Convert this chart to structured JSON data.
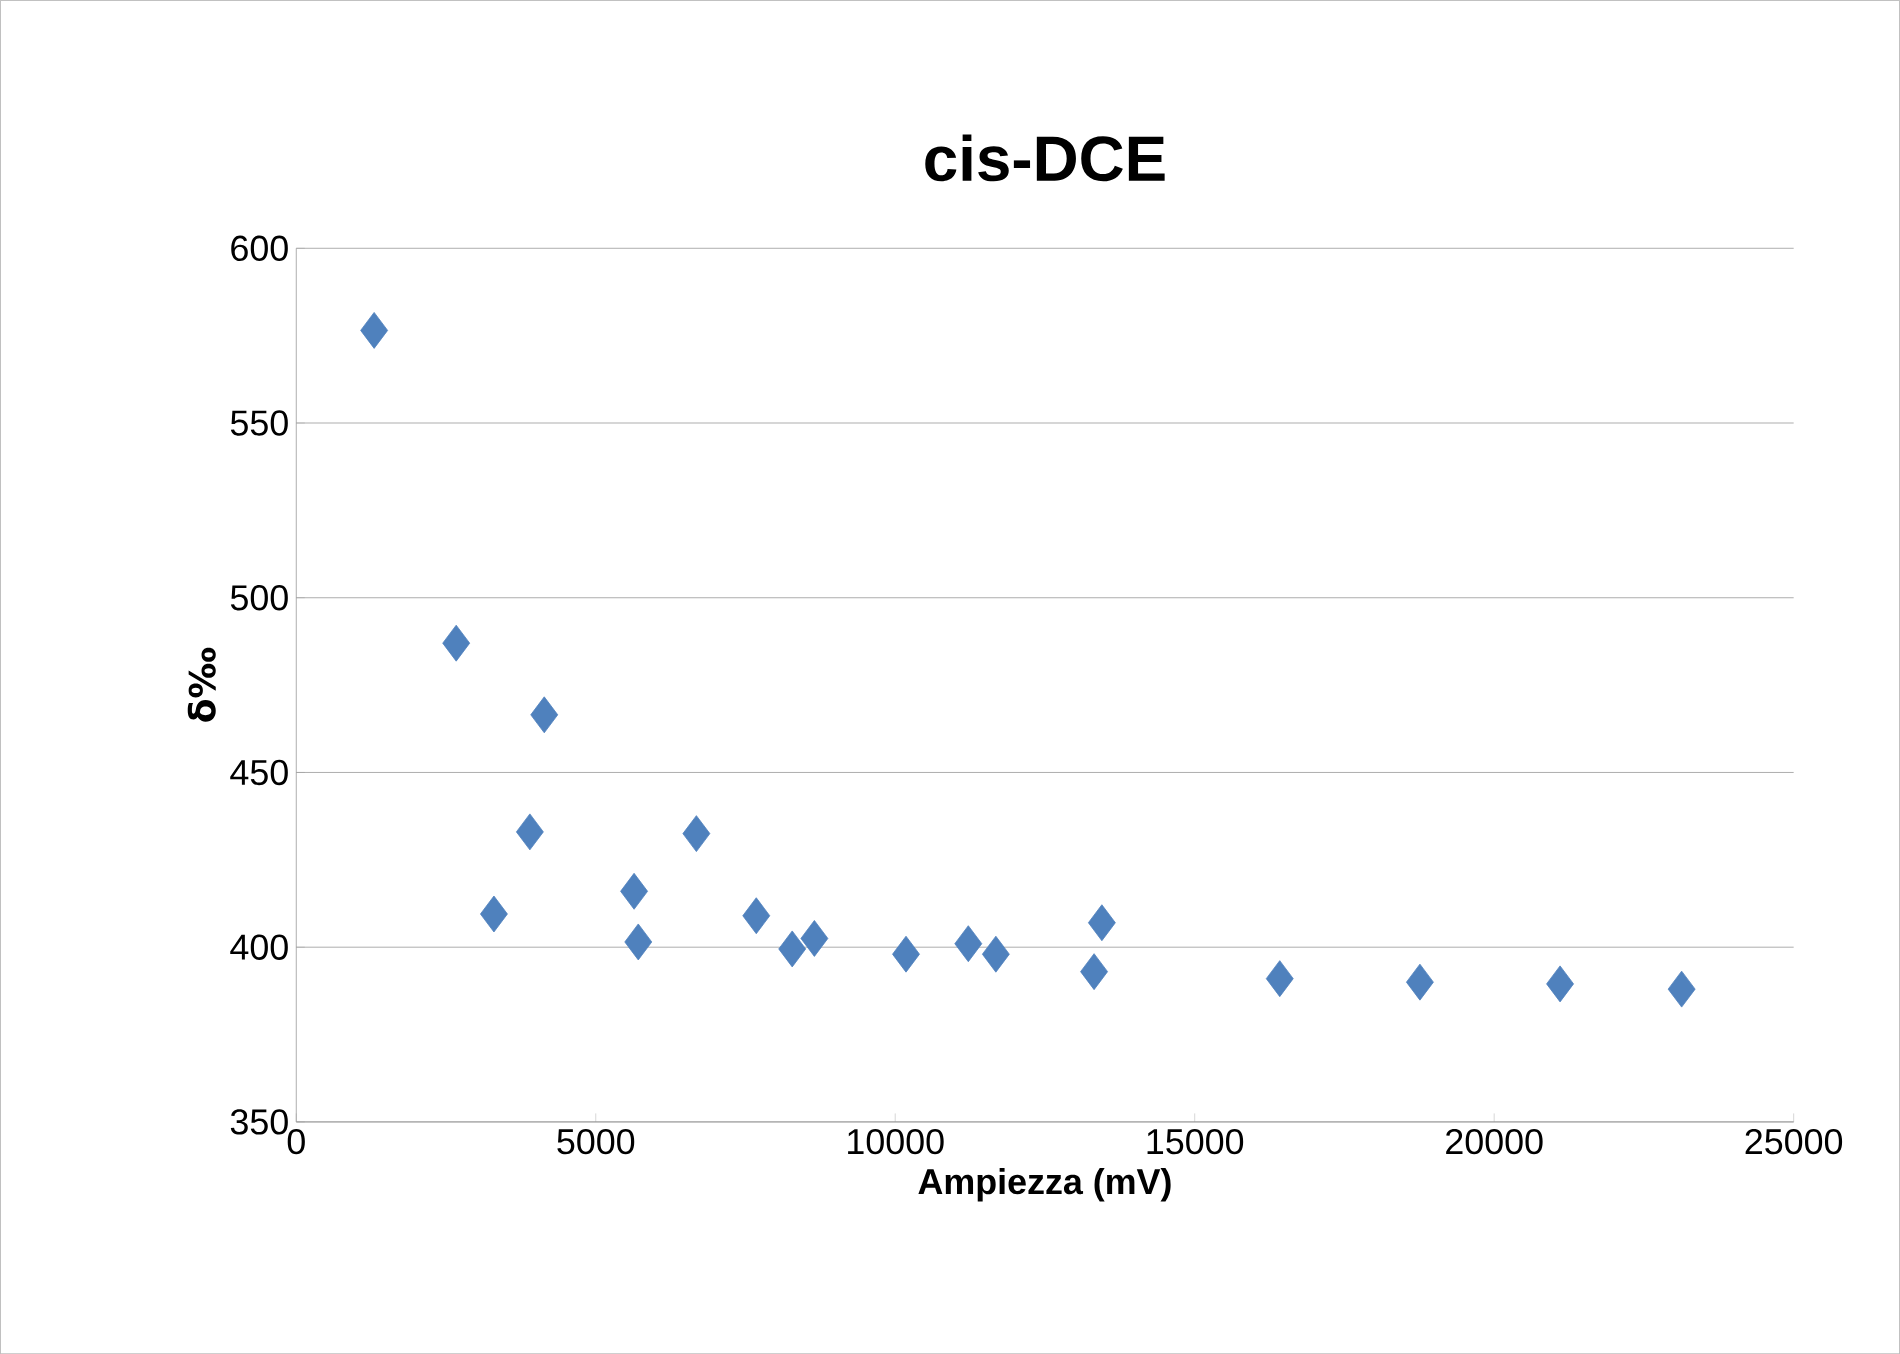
{
  "chart_data": {
    "type": "scatter",
    "title": "cis-DCE",
    "xlabel": "Ampiezza (mV)",
    "ylabel": "δ‰",
    "x": [
      1300,
      2670,
      3300,
      3900,
      4140,
      5640,
      5710,
      6680,
      7680,
      8280,
      8650,
      10180,
      11220,
      11680,
      13320,
      13450,
      16420,
      18760,
      21100,
      23130
    ],
    "values": [
      576.5,
      487,
      409.5,
      433,
      466.5,
      416,
      401.5,
      432.5,
      409,
      399.5,
      402.5,
      398,
      401,
      398,
      393,
      407,
      391,
      390,
      389.5,
      388
    ],
    "color": "#4f81bd",
    "marker": "diamond",
    "grid": "y",
    "xlim": [
      0,
      25000
    ],
    "xticks": [
      0,
      5000,
      10000,
      15000,
      20000,
      25000
    ],
    "ylim": [
      350,
      600
    ],
    "yticks": [
      350,
      400,
      450,
      500,
      550,
      600
    ]
  }
}
